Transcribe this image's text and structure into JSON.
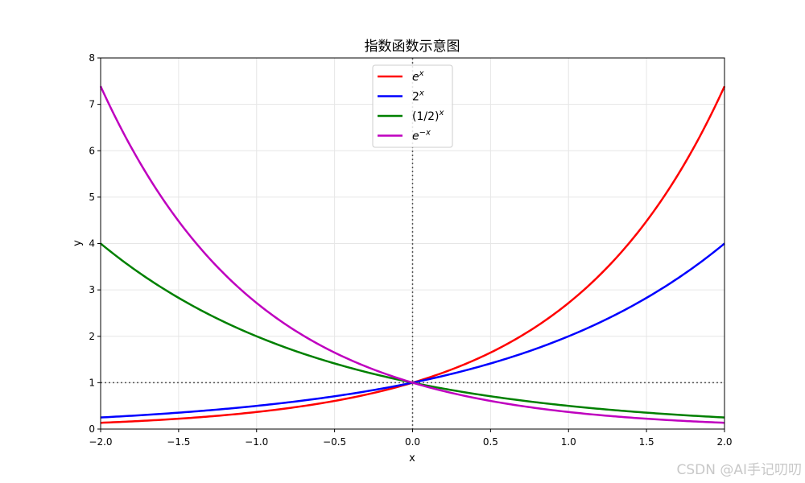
{
  "chart_data": {
    "type": "line",
    "title": "指数函数示意图",
    "xlabel": "x",
    "ylabel": "y",
    "xlim": [
      -2.0,
      2.0
    ],
    "ylim": [
      0,
      8
    ],
    "grid": true,
    "legend_position": "upper center",
    "x_ticks": [
      "−2.0",
      "−1.5",
      "−1.0",
      "−0.5",
      "0.0",
      "0.5",
      "1.0",
      "1.5",
      "2.0"
    ],
    "x_tick_values": [
      -2.0,
      -1.5,
      -1.0,
      -0.5,
      0.0,
      0.5,
      1.0,
      1.5,
      2.0
    ],
    "y_ticks": [
      "0",
      "1",
      "2",
      "3",
      "4",
      "5",
      "6",
      "7",
      "8"
    ],
    "y_tick_values": [
      0,
      1,
      2,
      3,
      4,
      5,
      6,
      7,
      8
    ],
    "x": [
      -2.0,
      -1.5,
      -1.0,
      -0.5,
      0.0,
      0.5,
      1.0,
      1.5,
      2.0
    ],
    "series": [
      {
        "name": "e^x",
        "label_base": "e",
        "label_sup": "x",
        "color": "#ff0000",
        "func": "exp",
        "values": [
          0.135,
          0.223,
          0.368,
          0.607,
          1.0,
          1.649,
          2.718,
          4.482,
          7.389
        ]
      },
      {
        "name": "2^x",
        "label_base": "2",
        "label_sup": "x",
        "color": "#0000ff",
        "func": "pow2",
        "values": [
          0.25,
          0.354,
          0.5,
          0.707,
          1.0,
          1.414,
          2.0,
          2.828,
          4.0
        ]
      },
      {
        "name": "(1/2)^x",
        "label_base": "(1/2)",
        "label_sup": "x",
        "color": "#008000",
        "func": "powhalf",
        "values": [
          4.0,
          2.828,
          2.0,
          1.414,
          1.0,
          0.707,
          0.5,
          0.354,
          0.25
        ]
      },
      {
        "name": "e^-x",
        "label_base": "e",
        "label_sup": "−x",
        "color": "#bf00bf",
        "func": "expneg",
        "values": [
          7.389,
          4.482,
          2.718,
          1.649,
          1.0,
          0.607,
          0.368,
          0.223,
          0.135
        ]
      }
    ],
    "reference_lines": [
      {
        "type": "horizontal",
        "y": 1,
        "style": "dotted",
        "color": "#555555"
      },
      {
        "type": "vertical",
        "x": 0,
        "style": "dotted",
        "color": "#555555"
      }
    ]
  },
  "watermark": "CSDN @AI手记叨叨"
}
